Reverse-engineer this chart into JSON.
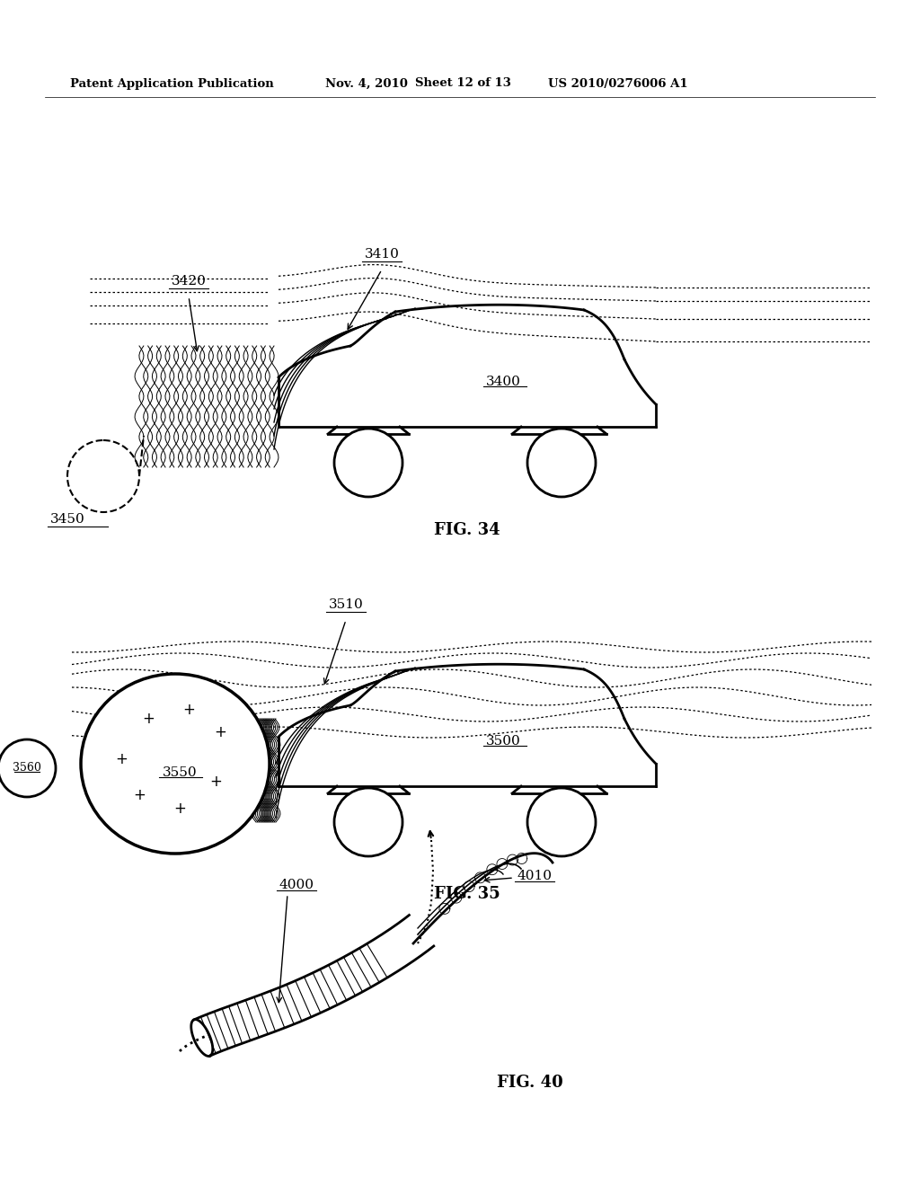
{
  "bg_color": "#ffffff",
  "header_text": "Patent Application Publication",
  "header_date": "Nov. 4, 2010",
  "header_sheet": "Sheet 12 of 13",
  "header_patent": "US 2010/0276006 A1",
  "fig34_label": "FIG. 34",
  "fig35_label": "FIG. 35",
  "fig40_label": "FIG. 40",
  "label_3400": "3400",
  "label_3410": "3410",
  "label_3420": "3420",
  "label_3450": "3450",
  "label_3500": "3500",
  "label_3510": "3510",
  "label_3550": "3550",
  "label_3560": "3560",
  "label_4000": "4000",
  "label_4010": "4010"
}
